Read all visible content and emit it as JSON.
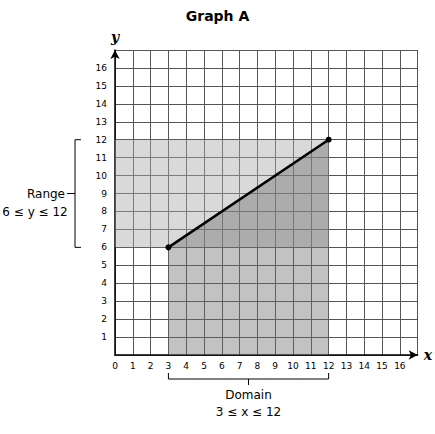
{
  "chart_data": {
    "type": "line",
    "title": "Graph A",
    "x": [
      3,
      12
    ],
    "values": [
      6,
      12
    ],
    "color": "#000000",
    "marker": "circle",
    "x_label": "x",
    "y_label": "y",
    "xlim": [
      0,
      17
    ],
    "ylim": [
      0,
      17
    ],
    "xticks": [
      0,
      1,
      2,
      3,
      4,
      5,
      6,
      7,
      8,
      9,
      10,
      11,
      12,
      13,
      14,
      15,
      16
    ],
    "yticks": [
      1,
      2,
      3,
      4,
      5,
      6,
      7,
      8,
      9,
      10,
      11,
      12,
      13,
      14,
      15,
      16
    ],
    "grid": true,
    "domain": {
      "label": "Domain",
      "text": "3 ≤ x ≤ 12",
      "min": 3,
      "max": 12
    },
    "range": {
      "label": "Range",
      "text": "6 ≤ y ≤ 12",
      "min": 6,
      "max": 12
    }
  }
}
